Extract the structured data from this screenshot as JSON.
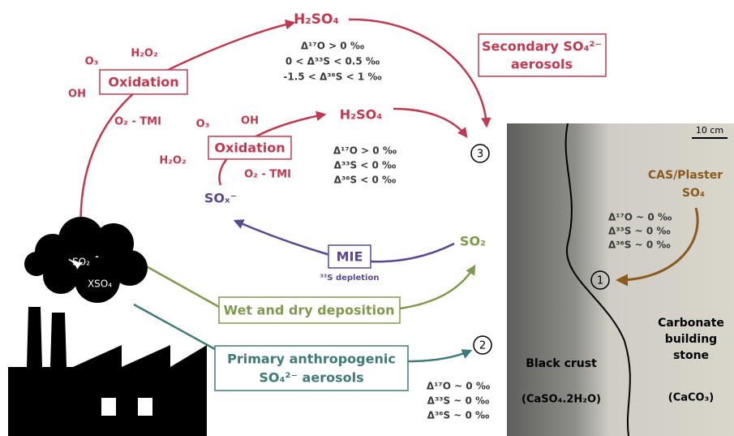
{
  "secondary_path": {
    "product": "H₂SO₄",
    "conditions": [
      "Δ¹⁷O > 0 ‰",
      "0 < Δ³³S < 0.5 ‰",
      "-1.5 < Δ³⁶S < 1 ‰"
    ],
    "oxidants": [
      "O₃",
      "H₂O₂",
      "OH"
    ],
    "process": "Oxidation",
    "catalyst": "O₂ - TMI"
  },
  "secondary_box": [
    "Secondary SO₄²⁻",
    "aerosols"
  ],
  "sox_path": {
    "oxidants": [
      "O₃",
      "OH",
      "H₂O₂"
    ],
    "process": "Oxidation",
    "catalyst": "O₂ - TMI",
    "product": "H₂SO₄",
    "conditions": [
      "Δ¹⁷O > 0 ‰",
      "Δ³³S < 0 ‰",
      "Δ³⁶S < 0 ‰"
    ],
    "reactant": "SOₓ⁻"
  },
  "mie": {
    "label": "MIE",
    "note": "³³S depletion",
    "source": "SO₂"
  },
  "cloud": [
    "SO₂",
    "XSO₄"
  ],
  "deposition": "Wet and dry deposition",
  "primary_box": [
    "Primary anthropogenic",
    "SO₄²⁻ aerosols"
  ],
  "primary_conditions": [
    "Δ¹⁷O ~ 0 ‰",
    "Δ³³S ~ 0 ‰",
    "Δ³⁶S ~ 0 ‰"
  ],
  "markers": [
    "1",
    "2",
    "3"
  ],
  "photo": {
    "scale": "10 cm",
    "source": [
      "CAS/Plaster",
      "SO₄"
    ],
    "conditions": [
      "Δ¹⁷O ~ 0 ‰",
      "Δ³³S ~ 0 ‰",
      "Δ³⁶S ~ 0 ‰"
    ],
    "crust": [
      "Black crust",
      "(CaSO₄.2H₂O)"
    ],
    "stone": [
      "Carbonate",
      "building",
      "stone",
      "(CaCO₃)"
    ]
  }
}
